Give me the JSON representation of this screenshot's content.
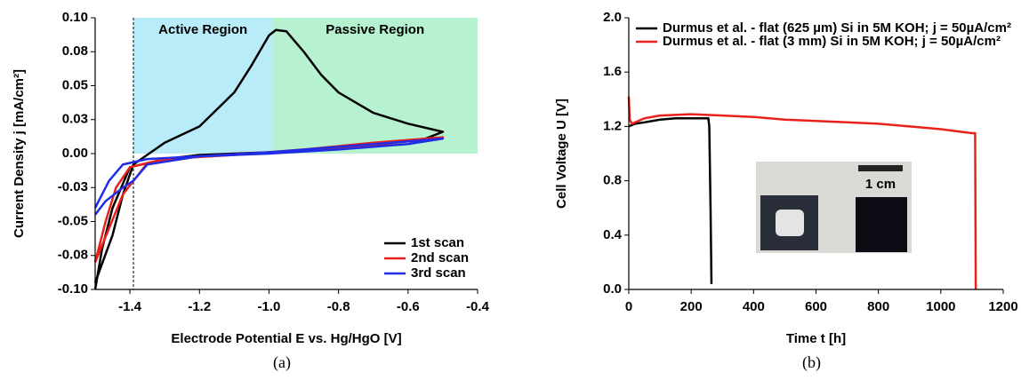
{
  "chart_data": [
    {
      "type": "line",
      "x_label": "Electrode Potential E vs. Hg/HgO [V]",
      "y_label": "Current Density j [mA/cm²]",
      "caption": "(a)",
      "xlim": [
        -1.5,
        -0.4
      ],
      "xticks": [
        -1.4,
        -1.2,
        {
          "value": -1,
          "label": "-1.0"
        },
        -0.8,
        -0.6,
        -0.4
      ],
      "ylim": [
        -0.1,
        0.1
      ],
      "yticks": [
        {
          "value": 0.1,
          "label": "0.10"
        },
        {
          "value": 0.075,
          "label": "0.08"
        },
        {
          "value": 0.05,
          "label": "0.05"
        },
        {
          "value": 0.025,
          "label": "0.03"
        },
        {
          "value": 0,
          "label": "0.00"
        },
        {
          "value": -0.025,
          "label": "-0.03"
        },
        {
          "value": -0.05,
          "label": "-0.05"
        },
        {
          "value": -0.075,
          "label": "-0.08"
        },
        {
          "value": -0.1,
          "label": "-0.10"
        }
      ],
      "regions": [
        {
          "label": "Active Region",
          "xlim": [
            -1.39,
            -0.99
          ],
          "ylim": [
            0,
            0.1
          ],
          "color": "#b9ecf9"
        },
        {
          "label": "Passive Region",
          "xlim": [
            -0.99,
            -0.4
          ],
          "ylim": [
            0,
            0.1
          ],
          "color": "#b6f1d0"
        }
      ],
      "vline": -1.39,
      "legend": "lower right",
      "series": [
        {
          "name": "1st scan",
          "color": "#000000",
          "x": [
            -1.5,
            -1.45,
            -1.42,
            -1.39,
            -1.3,
            -1.2,
            -1.1,
            -1.05,
            -1.0,
            -0.98,
            -0.95,
            -0.9,
            -0.85,
            -0.8,
            -0.7,
            -0.6,
            -0.5,
            -0.55,
            -0.7,
            -0.9,
            -1.1,
            -1.2,
            -1.3,
            -1.4,
            -1.45,
            -1.48,
            -1.5
          ],
          "values": [
            -0.095,
            -0.06,
            -0.03,
            -0.008,
            0.008,
            0.02,
            0.045,
            0.065,
            0.087,
            0.091,
            0.09,
            0.075,
            0.058,
            0.045,
            0.03,
            0.022,
            0.016,
            0.011,
            0.006,
            0.002,
            0.0,
            -0.001,
            -0.004,
            -0.01,
            -0.04,
            -0.07,
            -0.1
          ]
        },
        {
          "name": "2nd scan",
          "color": "#e8221b",
          "x": [
            -1.5,
            -1.47,
            -1.44,
            -1.4,
            -1.3,
            -1.1,
            -0.9,
            -0.7,
            -0.5,
            -0.6,
            -0.8,
            -1.0,
            -1.2,
            -1.35,
            -1.42,
            -1.46,
            -1.5
          ],
          "values": [
            -0.08,
            -0.05,
            -0.025,
            -0.01,
            -0.004,
            -0.001,
            0.003,
            0.008,
            0.012,
            0.009,
            0.004,
            0.001,
            -0.002,
            -0.007,
            -0.03,
            -0.055,
            -0.08
          ]
        },
        {
          "name": "3rd scan",
          "color": "#1f2ee6",
          "x": [
            -1.5,
            -1.47,
            -1.42,
            -1.39,
            -1.35,
            -1.2,
            -1.0,
            -0.8,
            -0.6,
            -0.5,
            -0.6,
            -0.8,
            -1.0,
            -1.2,
            -1.35,
            -1.42,
            -1.46,
            -1.5
          ],
          "values": [
            -0.045,
            -0.035,
            -0.025,
            -0.02,
            -0.008,
            -0.002,
            0.001,
            0.005,
            0.009,
            0.011,
            0.007,
            0.003,
            0.0,
            -0.002,
            -0.004,
            -0.008,
            -0.02,
            -0.04
          ]
        }
      ]
    },
    {
      "type": "line",
      "x_label": "Time t [h]",
      "y_label": "Cell Voltage U [V]",
      "caption": "(b)",
      "xlim": [
        0,
        1200
      ],
      "xticks": [
        0,
        200,
        400,
        600,
        800,
        1000,
        1200
      ],
      "ylim": [
        0,
        2
      ],
      "yticks": [
        {
          "value": 0,
          "label": "0.0"
        },
        0.4,
        0.8,
        1.2,
        1.6,
        {
          "value": 2,
          "label": "2.0"
        }
      ],
      "legend": "upper left",
      "inset_label": "1 cm",
      "series": [
        {
          "name": "Durmus et al. - flat (625 µm) Si in 5M KOH; j = 50µA/cm²",
          "color": "#000000",
          "x": [
            0,
            20,
            50,
            100,
            150,
            200,
            255,
            258,
            262,
            265
          ],
          "values": [
            1.2,
            1.22,
            1.23,
            1.25,
            1.26,
            1.26,
            1.26,
            1.2,
            0.6,
            0.04
          ]
        },
        {
          "name": "Durmus et al. - flat (3 mm) Si in 5M KOH; j = 50µA/cm²",
          "color": "#e8221b",
          "x": [
            0,
            3,
            10,
            50,
            100,
            200,
            300,
            400,
            500,
            600,
            700,
            800,
            900,
            1000,
            1100,
            1110,
            1112
          ],
          "values": [
            1.42,
            1.25,
            1.22,
            1.26,
            1.28,
            1.29,
            1.28,
            1.27,
            1.25,
            1.24,
            1.23,
            1.22,
            1.2,
            1.18,
            1.15,
            1.15,
            0.0
          ]
        }
      ]
    }
  ]
}
